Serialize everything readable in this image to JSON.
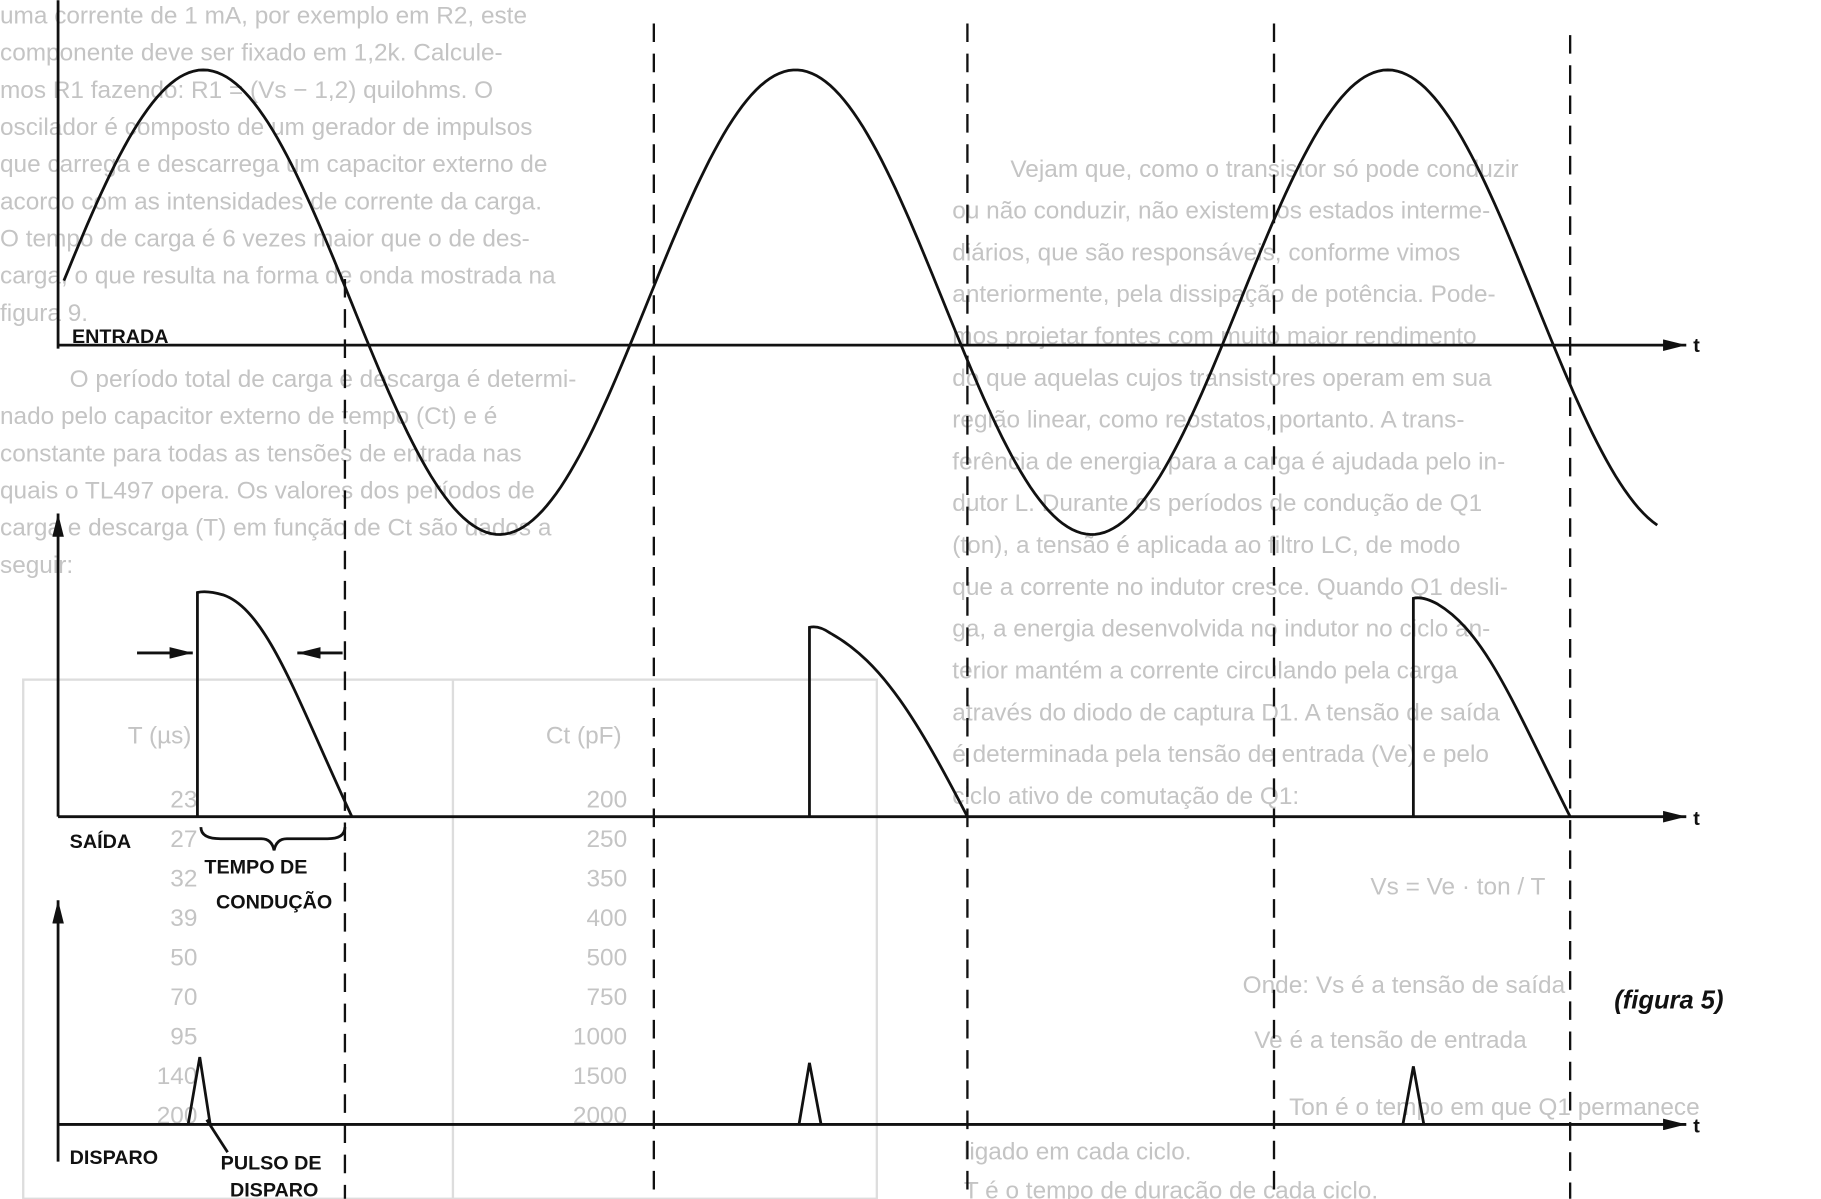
{
  "diagram": {
    "labels": {
      "input": "ENTRADA",
      "output": "SAÍDA",
      "conduction_time": [
        "TEMPO DE",
        "CONDUÇÃO"
      ],
      "trigger": "DISPARO",
      "trigger_pulse": [
        "PULSO DE",
        "DISPARO"
      ],
      "time_axis": [
        "t",
        "t",
        "t"
      ]
    },
    "caption": "(figura 5)"
  },
  "background_text": {
    "left_column": [
      "uma corrente de 1 mA, por exemplo em R2, este",
      "componente deve ser fixado em 1,2k. Calcule-",
      "mos R1 fazendo: R1 = (Vs − 1,2) quilohms. O",
      "oscilador é composto de um gerador de impulsos",
      "que carrega e descarrega um capacitor externo de",
      "acordo com as intensidades de corrente da carga.",
      "O tempo de carga é 6 vezes maior que o de des-",
      "carga, o que resulta na forma de onda mostrada na",
      "figura 9.",
      "O período total de carga e descarga é determi-",
      "nado pelo capacitor externo de tempo (Ct) e é",
      "constante para todas as tensões de entrada nas",
      "quais o TL497 opera. Os valores dos períodos de",
      "carga e descarga (T) em função de Ct são dados a",
      "seguir:"
    ],
    "table": {
      "headers": [
        "T (µs)",
        "Ct (pF)"
      ],
      "rows": [
        [
          "23",
          "200"
        ],
        [
          "27",
          "250"
        ],
        [
          "32",
          "350"
        ],
        [
          "39",
          "400"
        ],
        [
          "50",
          "500"
        ],
        [
          "70",
          "750"
        ],
        [
          "95",
          "1000"
        ],
        [
          "140",
          "1500"
        ],
        [
          "200",
          "2000"
        ]
      ]
    },
    "right_column": [
      "Vejam que, como o transistor só pode conduzir",
      "ou não conduzir, não existem os estados interme-",
      "diários, que são responsáveis, conforme vimos",
      "anteriormente, pela dissipação de potência. Pode-",
      "mos projetar fontes com muito maior rendimento",
      "do que aquelas cujos transistores operam em sua",
      "região linear, como reostatos, portanto. A trans-",
      "ferência de energia para a carga é ajudada pelo in-",
      "dutor L. Durante os períodos de condução de Q1",
      "(ton), a tensão é aplicada ao filtro LC, de modo",
      "que a corrente no indutor cresce. Quando Q1 desli-",
      "ga, a energia desenvolvida no indutor no ciclo an-",
      "terior mantém a corrente circulando pela carga",
      "através do diodo de captura D1. A tensão de saída",
      "é determinada pela tensão de entrada (Ve) e pelo",
      "ciclo ativo de comutação de Q1:"
    ],
    "formula": "Vs = Ve · ton / T",
    "notes": [
      "Onde: Vs é a tensão de saída",
      "Ve é a tensão de entrada",
      "Ton é o tempo em que Q1 permanece",
      "ligado em cada ciclo.",
      "T é o tempo de duração de cada ciclo."
    ]
  }
}
